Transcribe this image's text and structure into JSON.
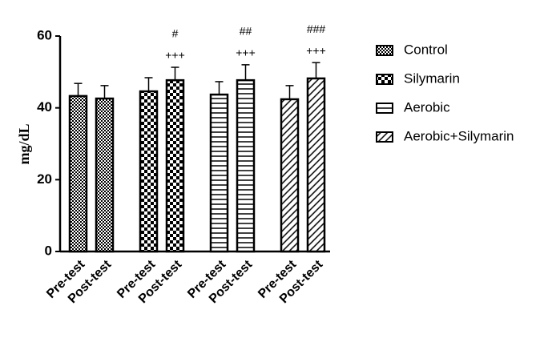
{
  "chart_data": {
    "type": "bar",
    "y_label": "mg/dL",
    "categories": [
      "Pre-test",
      "Post-test"
    ],
    "series": [
      {
        "name": "Control",
        "pattern": "fine-checker",
        "values": [
          43.3,
          42.6
        ],
        "errors": [
          3.5,
          3.6
        ]
      },
      {
        "name": "Silymarin",
        "pattern": "checker",
        "values": [
          44.6,
          47.7
        ],
        "errors": [
          3.8,
          3.6
        ],
        "annotations": [
          "#",
          "+++"
        ]
      },
      {
        "name": "Aerobic",
        "pattern": "horizontal",
        "values": [
          43.7,
          47.7
        ],
        "errors": [
          3.6,
          4.3
        ],
        "annotations": [
          "##",
          "+++"
        ]
      },
      {
        "name": "Aerobic+Silymarin",
        "pattern": "diagonal",
        "values": [
          42.4,
          48.2
        ],
        "errors": [
          3.8,
          4.4
        ],
        "annotations": [
          "###",
          "+++"
        ]
      }
    ],
    "ylim": [
      0,
      60
    ],
    "yticks": [
      0,
      20,
      40,
      60
    ],
    "grid": false,
    "legend": "right"
  }
}
